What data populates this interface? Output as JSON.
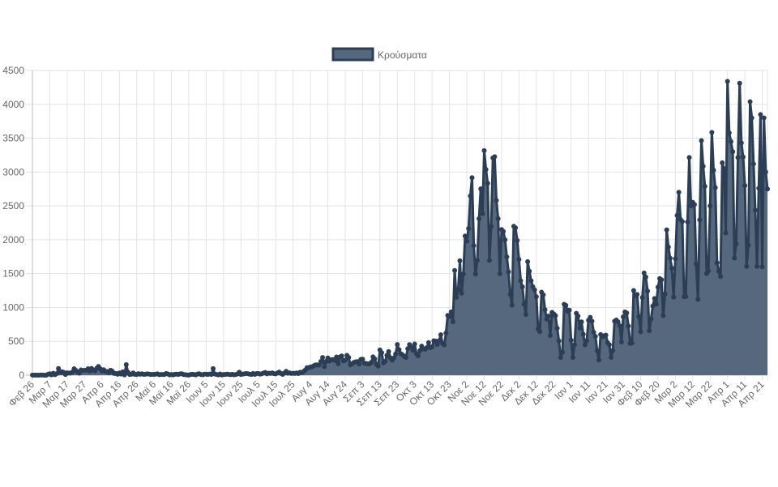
{
  "chart_data": {
    "type": "area",
    "title": "",
    "xlabel": "",
    "ylabel": "",
    "ylim": [
      0,
      4500
    ],
    "y_ticks": [
      0,
      500,
      1000,
      1500,
      2000,
      2500,
      3000,
      3500,
      4000,
      4500
    ],
    "grid": true,
    "legend_position": "top-center",
    "series": [
      {
        "name": "Κρούσματα",
        "fill_color": "#56687d",
        "line_color": "#2c3e55",
        "values": [
          1,
          0,
          1,
          0,
          0,
          3,
          2,
          0,
          0,
          14,
          21,
          5,
          28,
          7,
          23,
          99,
          38,
          51,
          42,
          10,
          35,
          32,
          31,
          46,
          95,
          71,
          48,
          30,
          78,
          71,
          72,
          74,
          95,
          60,
          100,
          77,
          64,
          102,
          129,
          94,
          62,
          81,
          56,
          54,
          36,
          73,
          59,
          25,
          26,
          14,
          33,
          17,
          49,
          5,
          156,
          43,
          11,
          13,
          33,
          12,
          11,
          22,
          14,
          21,
          12,
          13,
          19,
          16,
          10,
          12,
          12,
          15,
          20,
          8,
          10,
          10,
          11,
          25,
          16,
          4,
          10,
          5,
          13,
          15,
          10,
          19,
          21,
          9,
          8,
          3,
          2,
          11,
          14,
          10,
          4,
          16,
          21,
          9,
          6,
          15,
          15,
          11,
          16,
          10,
          97,
          16,
          10,
          5,
          18,
          3,
          11,
          10,
          15,
          12,
          8,
          14,
          6,
          9,
          18,
          43,
          11,
          16,
          20,
          26,
          21,
          15,
          10,
          25,
          12,
          24,
          26,
          15,
          21,
          32,
          41,
          19,
          30,
          26,
          34,
          22,
          20,
          33,
          47,
          25,
          12,
          31,
          57,
          29,
          34,
          25,
          28,
          26,
          33,
          24,
          43,
          37,
          54,
          75,
          110,
          110,
          121,
          124,
          141,
          152,
          153,
          149,
          203,
          262,
          126,
          203,
          254,
          209,
          229,
          230,
          217,
          269,
          169,
          269,
          284,
          211,
          220,
          293,
          262,
          154,
          168,
          189,
          197,
          200,
          163,
          234,
          236,
          177,
          174,
          166,
          166,
          189,
          271,
          241,
          160,
          135,
          372,
          332,
          181,
          203,
          293,
          349,
          257,
          222,
          255,
          313,
          453,
          377,
          317,
          301,
          277,
          262,
          391,
          452,
          416,
          366,
          460,
          314,
          286,
          364,
          430,
          391,
          382,
          407,
          481,
          405,
          419,
          508,
          504,
          454,
          509,
          597,
          468,
          447,
          623,
          882,
          865,
          935,
          790,
          1547,
          1150,
          1259,
          1690,
          1210,
          1494,
          2056,
          1980,
          2166,
          2646,
          2917,
          1914,
          1494,
          1695,
          2311,
          2752,
          2384,
          3316,
          3038,
          2835,
          1695,
          2198,
          3209,
          3227,
          2581,
          2311,
          1498,
          2152,
          2123,
          1999,
          1747,
          1527,
          1193,
          1033,
          2199,
          2176,
          1990,
          1710,
          1395,
          1304,
          1045,
          897,
          1677,
          1535,
          1395,
          1306,
          1259,
          1158,
          683,
          643,
          1226,
          1187,
          966,
          829,
          874,
          586,
          927,
          905,
          880,
          693,
          505,
          262,
          338,
          1047,
          1031,
          943,
          960,
          516,
          262,
          450,
          914,
          873,
          695,
          787,
          604,
          447,
          508,
          813,
          854,
          798,
          635,
          573,
          360,
          225,
          600,
          568,
          582,
          591,
          480,
          450,
          263,
          365,
          797,
          815,
          788,
          730,
          490,
          862,
          934,
          918,
          725,
          470,
          476,
          1251,
          1175,
          1192,
          866,
          642,
          1148,
          1510,
          1450,
          1243,
          656,
          832,
          1022,
          1133,
          1050,
          1300,
          1427,
          1410,
          880,
          1200,
          2147,
          1893,
          1728,
          1580,
          1153,
          1720,
          2360,
          2702,
          2300,
          2270,
          1160,
          1163,
          2264,
          3215,
          2500,
          2552,
          2521,
          1643,
          1120,
          2294,
          3465,
          3086,
          2790,
          1500,
          1540,
          2500,
          3586,
          3028,
          2770,
          1660,
          1533,
          1457,
          3137,
          3050,
          2100,
          4340,
          3579,
          3450,
          3300,
          1730,
          1940,
          3215,
          4311,
          3431,
          3222,
          2800,
          1607,
          1920,
          4040,
          3800,
          3120,
          2437,
          1607,
          2760,
          3849,
          1600,
          3800,
          3000,
          2750
        ]
      }
    ],
    "x_tick_every_days": 10,
    "x_tick_labels": [
      "Φεβ 26",
      "Μαρ 7",
      "Μαρ 17",
      "Μαρ 27",
      "Απρ 6",
      "Απρ 16",
      "Απρ 26",
      "Μαϊ 6",
      "Μαϊ 16",
      "Μαϊ 26",
      "Ιουν 5",
      "Ιουν 15",
      "Ιουν 25",
      "Ιουλ 5",
      "Ιουλ 15",
      "Ιουλ 25",
      "Αυγ 4",
      "Αυγ 14",
      "Αυγ 24",
      "Σεπ 3",
      "Σεπ 13",
      "Σεπ 23",
      "Οκτ 3",
      "Οκτ 13",
      "Οκτ 23",
      "Νοε 2",
      "Νοε 12",
      "Νοε 22",
      "Δεκ 2",
      "Δεκ 12",
      "Δεκ 22",
      "Ιαν 1",
      "Ιαν 11",
      "Ιαν 21",
      "Ιαν 31",
      "Φεβ 10",
      "Φεβ 20",
      "Μαρ 2",
      "Μαρ 12",
      "Μαρ 22",
      "Απρ 1",
      "Απρ 11",
      "Απρ 21"
    ]
  }
}
